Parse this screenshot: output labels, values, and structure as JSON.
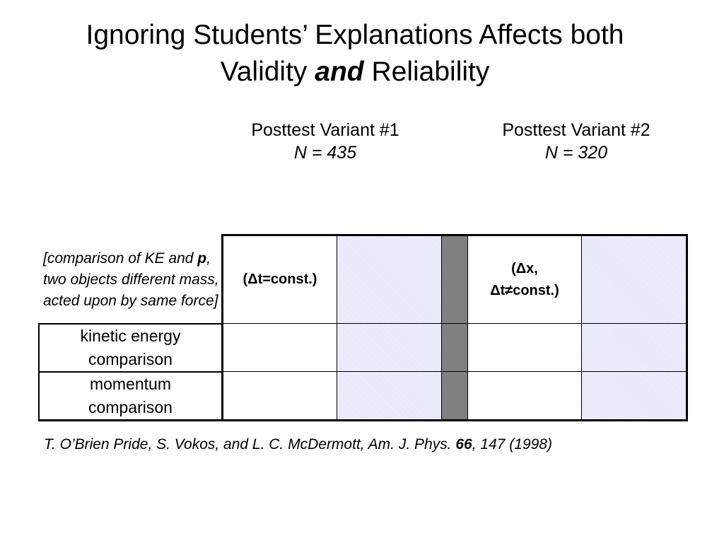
{
  "title": {
    "line1": "Ignoring Students’ Explanations Affects both",
    "line2_pre": "Validity",
    "line2_em": "and",
    "line2_post": "Reliability"
  },
  "variants": [
    {
      "name": "Posttest Variant #1",
      "n": "N = 435"
    },
    {
      "name": "Posttest Variant #2",
      "n": "N = 320"
    }
  ],
  "table": {
    "description_parts": [
      "[comparison of KE and ",
      "p",
      ", two objects different mass, acted upon by same force]"
    ],
    "col1_header": "(Δt=const.)",
    "col2_header_line1": "(Δx,",
    "col2_header_line2": "Δt≠const.)",
    "rows": [
      {
        "label_line1": "kinetic energy",
        "label_line2": "comparison"
      },
      {
        "label_line1": "momentum",
        "label_line2": "comparison"
      }
    ]
  },
  "citation": {
    "pre": "T. O’Brien Pride, S. Vokos, and L. C.  McDermott, Am. J. Phys. ",
    "volume": "66",
    "post": ", 147 (1998)"
  },
  "colors": {
    "shade": "#e6e6fa",
    "gray_column": "#808080"
  }
}
